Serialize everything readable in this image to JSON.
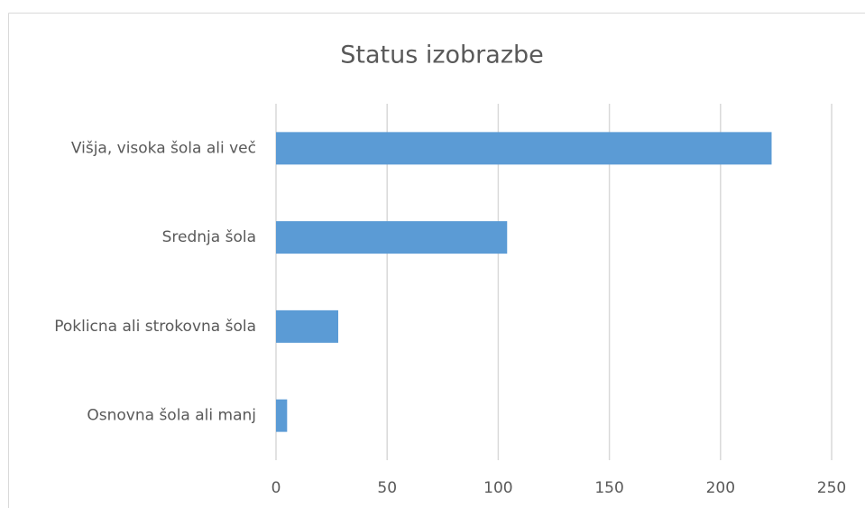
{
  "chart_data": {
    "type": "bar",
    "orientation": "horizontal",
    "title": "Status izobrazbe",
    "categories": [
      "Višja, visoka šola ali več",
      "Srednja šola",
      "Poklicna ali strokovna šola",
      "Osnovna šola ali manj"
    ],
    "values": [
      223,
      104,
      28,
      5
    ],
    "color": "#5b9bd5",
    "xlim": [
      0,
      250
    ],
    "xticks": [
      0,
      50,
      100,
      150,
      200,
      250
    ],
    "grid": true
  }
}
